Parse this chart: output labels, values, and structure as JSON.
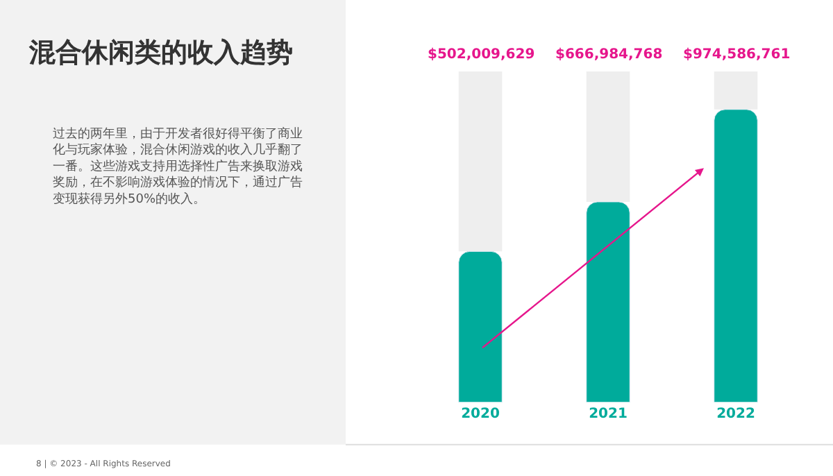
{
  "chart_data": {
    "type": "bar",
    "title": "混合休闲类的收入趋势",
    "categories": [
      "2020",
      "2021",
      "2022"
    ],
    "values": [
      502009629,
      666984768,
      974586761
    ],
    "value_labels": [
      "$502,009,629",
      "$666,984,768",
      "$974,586,761"
    ],
    "color": "#00ab9b",
    "tick_labels": "x",
    "grid": false,
    "annotations": [
      "过去的两年里，由于开发者很好得平衡了商业化与玩家体验，混合休闲游戏的收入几乎翻了一番。这些游戏支持用选择性广告来换取游戏奖励，在不影响游戏体验的情况下，通过广告变现获得另外50%的收入。",
      "8 | © 2023 - All Rights Reserved"
    ]
  }
}
